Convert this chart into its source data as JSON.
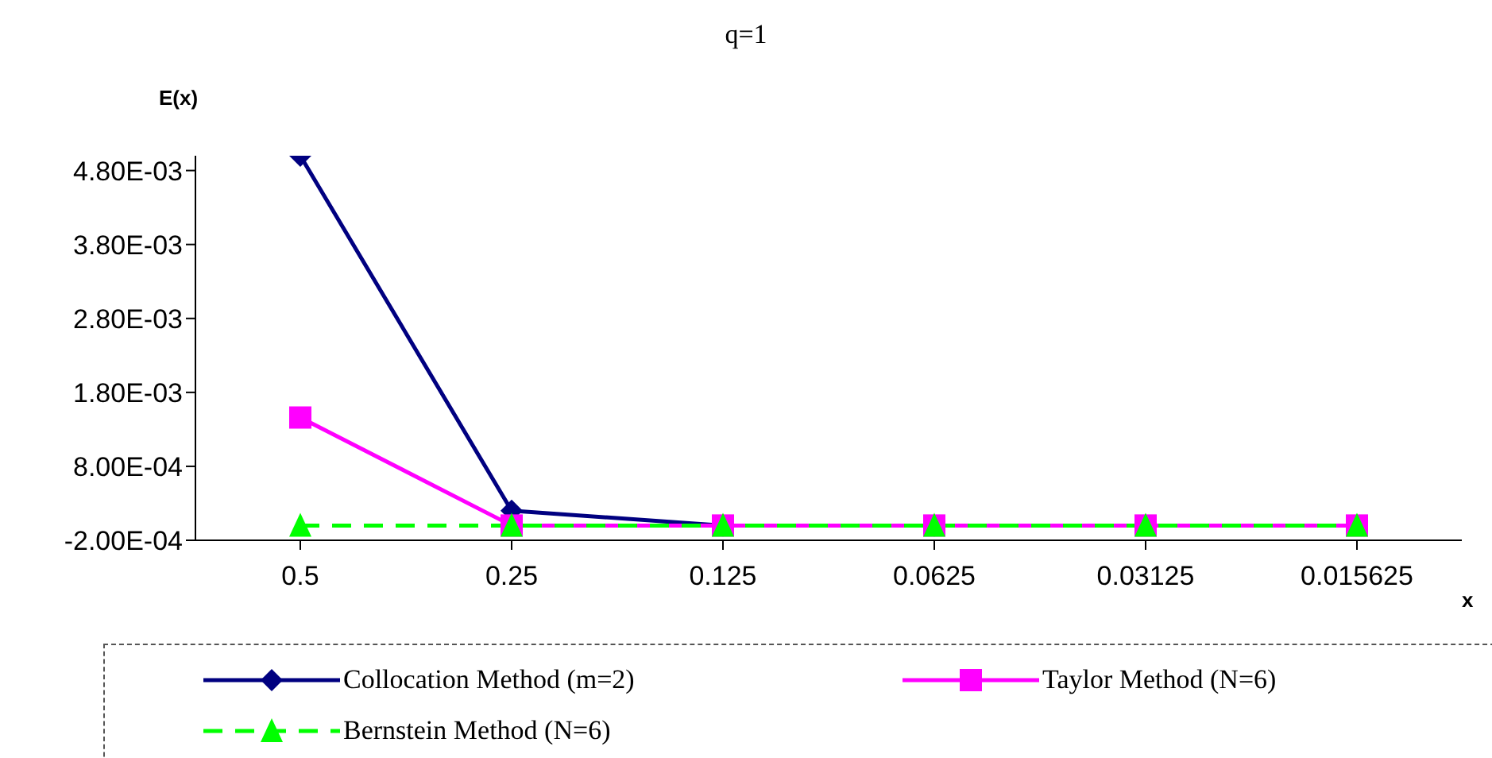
{
  "chart_data": {
    "type": "line",
    "title": "q=1",
    "xlabel": "x",
    "ylabel": "E(x)",
    "categories": [
      "0.5",
      "0.25",
      "0.125",
      "0.0625",
      "0.03125",
      "0.015625"
    ],
    "series": [
      {
        "name": "Collocation Method (m=2)",
        "color": "#000080",
        "marker": "diamond",
        "line_style": "solid",
        "values": [
          0.005,
          0.0002,
          0,
          0,
          null,
          null
        ]
      },
      {
        "name": "Taylor Method (N=6)",
        "color": "#ff00ff",
        "marker": "square",
        "line_style": "solid",
        "values": [
          0.00146,
          0,
          0,
          0,
          0,
          0
        ]
      },
      {
        "name": "Bernstein Method (N=6)",
        "color": "#00ff00",
        "marker": "triangle",
        "line_style": "dashed",
        "values": [
          0,
          0,
          0,
          0,
          0,
          0
        ]
      }
    ],
    "ylim": [
      -0.0002,
      0.005
    ],
    "yticks": [
      {
        "value": -0.0002,
        "label": "-2.00E-04"
      },
      {
        "value": 0.0008,
        "label": "8.00E-04"
      },
      {
        "value": 0.0018,
        "label": "1.80E-03"
      },
      {
        "value": 0.0028,
        "label": "2.80E-03"
      },
      {
        "value": 0.0038,
        "label": "3.80E-03"
      },
      {
        "value": 0.0048,
        "label": "4.80E-03"
      }
    ],
    "grid": false,
    "legend": "bottom"
  }
}
